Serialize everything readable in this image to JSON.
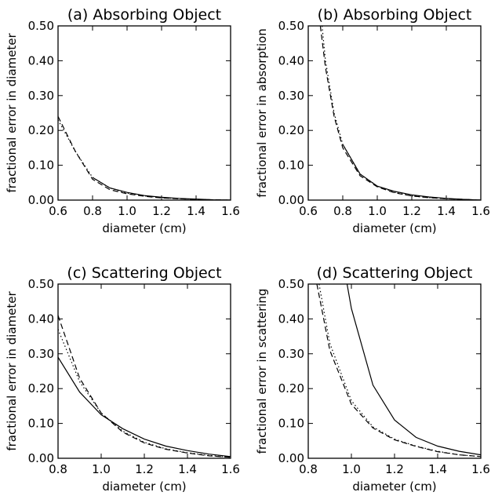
{
  "chart_data": [
    {
      "type": "line",
      "title": "(a) Absorbing Object",
      "xlabel": "diameter (cm)",
      "ylabel": "fractional error in diameter",
      "xlim": [
        0.6,
        1.6
      ],
      "ylim": [
        0.0,
        0.5
      ],
      "xticks": [
        "0.6",
        "0.8",
        "1.0",
        "1.2",
        "1.4",
        "1.6"
      ],
      "yticks": [
        "0.00",
        "0.10",
        "0.20",
        "0.30",
        "0.40",
        "0.50"
      ],
      "series": [
        {
          "style": "solid",
          "x": [
            0.8,
            0.9,
            1.0,
            1.1,
            1.2,
            1.3,
            1.4,
            1.5,
            1.6
          ],
          "y": [
            0.065,
            0.035,
            0.022,
            0.013,
            0.008,
            0.005,
            0.003,
            0.001,
            0.0
          ]
        },
        {
          "style": "dotted",
          "x": [
            0.6,
            0.7,
            0.8,
            0.9,
            1.0,
            1.1,
            1.2,
            1.3,
            1.4,
            1.5,
            1.6
          ],
          "y": [
            0.23,
            0.14,
            0.065,
            0.035,
            0.02,
            0.012,
            0.007,
            0.004,
            0.002,
            0.001,
            0.0
          ]
        },
        {
          "style": "dashed",
          "x": [
            0.6,
            0.7,
            0.8,
            0.9,
            1.0,
            1.1,
            1.2,
            1.3,
            1.4,
            1.5,
            1.6
          ],
          "y": [
            0.24,
            0.14,
            0.06,
            0.03,
            0.018,
            0.011,
            0.006,
            0.004,
            0.002,
            0.001,
            0.0
          ]
        }
      ]
    },
    {
      "type": "line",
      "title": "(b) Absorbing Object",
      "xlabel": "diameter (cm)",
      "ylabel": "fractional error in absorption",
      "xlim": [
        0.6,
        1.6
      ],
      "ylim": [
        0.0,
        0.5
      ],
      "xticks": [
        "0.6",
        "0.8",
        "1.0",
        "1.2",
        "1.4",
        "1.6"
      ],
      "yticks": [
        "0.00",
        "0.10",
        "0.20",
        "0.30",
        "0.40",
        "0.50"
      ],
      "series": [
        {
          "style": "solid",
          "x": [
            0.8,
            0.9,
            1.0,
            1.1,
            1.2,
            1.3,
            1.4,
            1.5,
            1.6
          ],
          "y": [
            0.16,
            0.075,
            0.04,
            0.025,
            0.015,
            0.009,
            0.005,
            0.002,
            0.0
          ]
        },
        {
          "style": "dotted",
          "x": [
            0.68,
            0.7,
            0.75,
            0.8,
            0.9,
            1.0,
            1.1,
            1.2,
            1.3,
            1.4,
            1.5,
            1.6
          ],
          "y": [
            0.5,
            0.4,
            0.25,
            0.16,
            0.075,
            0.04,
            0.022,
            0.012,
            0.007,
            0.004,
            0.002,
            0.0
          ]
        },
        {
          "style": "dashed",
          "x": [
            0.67,
            0.7,
            0.75,
            0.8,
            0.9,
            1.0,
            1.1,
            1.2,
            1.3,
            1.4,
            1.5,
            1.6
          ],
          "y": [
            0.5,
            0.38,
            0.24,
            0.15,
            0.07,
            0.038,
            0.021,
            0.012,
            0.007,
            0.004,
            0.002,
            0.0
          ]
        }
      ]
    },
    {
      "type": "line",
      "title": "(c) Scattering Object",
      "xlabel": "diameter (cm)",
      "ylabel": "fractional error in diameter",
      "xlim": [
        0.8,
        1.6
      ],
      "ylim": [
        0.0,
        0.5
      ],
      "xticks": [
        "0.8",
        "1.0",
        "1.2",
        "1.4",
        "1.6"
      ],
      "yticks": [
        "0.00",
        "0.10",
        "0.20",
        "0.30",
        "0.40",
        "0.50"
      ],
      "series": [
        {
          "style": "solid",
          "x": [
            0.8,
            0.9,
            1.0,
            1.1,
            1.2,
            1.3,
            1.4,
            1.5,
            1.6
          ],
          "y": [
            0.29,
            0.19,
            0.125,
            0.085,
            0.055,
            0.035,
            0.022,
            0.012,
            0.005
          ]
        },
        {
          "style": "dotted",
          "x": [
            0.8,
            0.9,
            1.0,
            1.1,
            1.2,
            1.3,
            1.4,
            1.5,
            1.6
          ],
          "y": [
            0.37,
            0.22,
            0.13,
            0.078,
            0.046,
            0.027,
            0.016,
            0.008,
            0.003
          ]
        },
        {
          "style": "dashed",
          "x": [
            0.8,
            0.9,
            1.0,
            1.1,
            1.2,
            1.3,
            1.4,
            1.5,
            1.6
          ],
          "y": [
            0.41,
            0.23,
            0.13,
            0.075,
            0.044,
            0.026,
            0.015,
            0.007,
            0.003
          ]
        }
      ]
    },
    {
      "type": "line",
      "title": "(d) Scattering Object",
      "xlabel": "diameter (cm)",
      "ylabel": "fractional error in scattering",
      "xlim": [
        0.8,
        1.6
      ],
      "ylim": [
        0.0,
        0.5
      ],
      "xticks": [
        "0.8",
        "1.0",
        "1.2",
        "1.4",
        "1.6"
      ],
      "yticks": [
        "0.00",
        "0.10",
        "0.20",
        "0.30",
        "0.40",
        "0.50"
      ],
      "series": [
        {
          "style": "solid",
          "x": [
            0.98,
            1.0,
            1.1,
            1.2,
            1.3,
            1.4,
            1.5,
            1.6
          ],
          "y": [
            0.5,
            0.43,
            0.21,
            0.11,
            0.06,
            0.035,
            0.02,
            0.01
          ]
        },
        {
          "style": "dotted",
          "x": [
            0.85,
            0.9,
            1.0,
            1.1,
            1.2,
            1.3,
            1.4,
            1.5,
            1.6
          ],
          "y": [
            0.5,
            0.33,
            0.165,
            0.09,
            0.055,
            0.035,
            0.02,
            0.01,
            0.005
          ]
        },
        {
          "style": "dashed",
          "x": [
            0.84,
            0.9,
            1.0,
            1.1,
            1.2,
            1.3,
            1.4,
            1.5,
            1.6
          ],
          "y": [
            0.5,
            0.31,
            0.155,
            0.087,
            0.053,
            0.034,
            0.019,
            0.01,
            0.005
          ]
        }
      ]
    }
  ]
}
